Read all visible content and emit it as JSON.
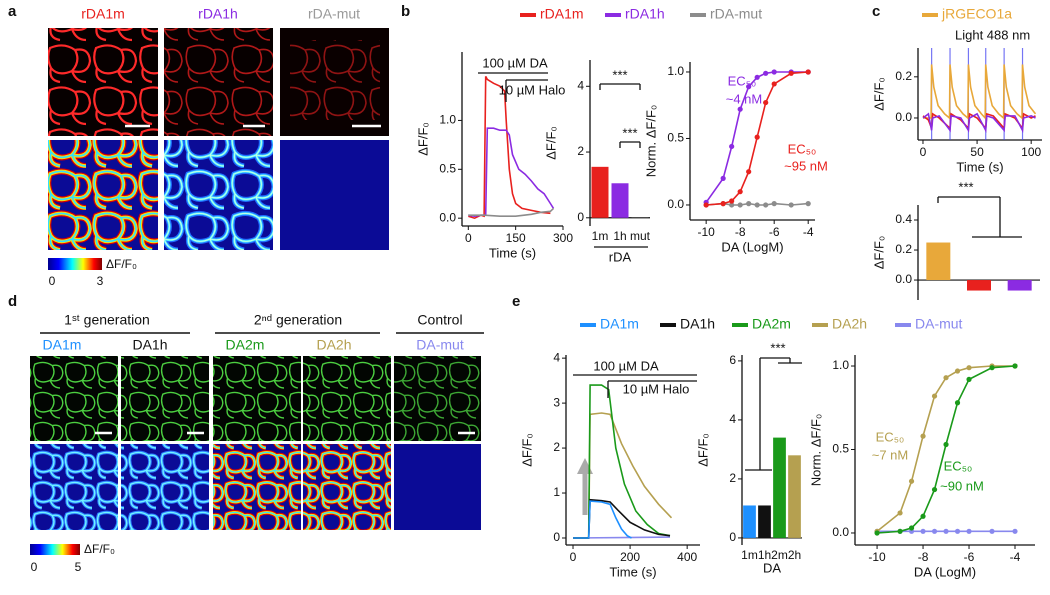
{
  "panel_labels": [
    "a",
    "b",
    "c",
    "d",
    "e"
  ],
  "panel_a": {
    "columns": [
      "rDA1m",
      "rDA1h",
      "rDA-mut"
    ],
    "colorbar": {
      "ticks": [
        0,
        3
      ],
      "label": "ΔF/F₀"
    }
  },
  "panel_d": {
    "groups": [
      "1ˢᵗ generation",
      "2ⁿᵈ generation",
      "Control"
    ],
    "columns": [
      "DA1m",
      "DA1h",
      "DA2m",
      "DA2h",
      "DA-mut"
    ],
    "colorbar": {
      "ticks": [
        0,
        5
      ],
      "label": "ΔF/F₀"
    }
  },
  "chart_data": [
    {
      "type": "line",
      "ylabel": "ΔF/F₀",
      "xlabel": "Time (s)",
      "xlim": [
        -20,
        300
      ],
      "ylim": [
        -0.08,
        1.7
      ],
      "xticks": [
        0,
        150,
        300
      ],
      "yticks": [
        {
          "value": 0,
          "label": "0.0"
        },
        {
          "value": 0.5,
          "label": "0.5"
        },
        {
          "value": 1,
          "label": "1.0"
        }
      ],
      "series": [
        {
          "name": "rDA1m",
          "color": "#e8211e",
          "x": [
            0,
            20,
            40,
            50,
            55,
            60,
            80,
            100,
            115,
            120,
            130,
            140,
            150,
            170,
            200,
            230,
            260
          ],
          "values": [
            0.02,
            0.0,
            0.03,
            0.02,
            1.45,
            1.42,
            1.38,
            1.35,
            1.3,
            1.0,
            0.5,
            0.25,
            0.15,
            0.1,
            0.08,
            0.06,
            0.05
          ]
        },
        {
          "name": "rDA1h",
          "color": "#8b2be2",
          "x": [
            0,
            20,
            40,
            55,
            60,
            80,
            100,
            120,
            130,
            140,
            160,
            180,
            200,
            220,
            240,
            260,
            270
          ],
          "values": [
            0.03,
            0.02,
            0.03,
            0.03,
            0.92,
            0.92,
            0.9,
            0.9,
            0.85,
            0.65,
            0.5,
            0.45,
            0.38,
            0.3,
            0.25,
            0.15,
            0.1
          ]
        },
        {
          "name": "rDA-mut",
          "color": "#8c8c8c",
          "x": [
            0,
            50,
            100,
            150,
            200,
            230,
            260,
            270
          ],
          "values": [
            0.03,
            0.03,
            0.02,
            0.02,
            0.04,
            0.06,
            0.07,
            0.1
          ]
        }
      ],
      "annotations": [
        {
          "text": "100 µM DA"
        },
        {
          "text": "10 µM Halo"
        }
      ]
    },
    {
      "type": "bar",
      "ylabel": "ΔF/F₀",
      "ylim": [
        -0.25,
        4.8
      ],
      "yticks": [
        0,
        2,
        4
      ],
      "categories": [
        "1m",
        "1h",
        "mut"
      ],
      "values": [
        1.55,
        1.05,
        -0.03
      ],
      "colors": [
        "#e8211e",
        "#8b2be2",
        "#8c8c8c"
      ],
      "annotations": [
        {
          "text": "***"
        },
        {
          "text": "***"
        },
        {
          "text": "rDA"
        }
      ]
    },
    {
      "type": "line",
      "markers": true,
      "ylabel": "Norm. ΔF/F₀",
      "xlabel": "DA (LogM)",
      "xlim": [
        -10.95,
        -3.6
      ],
      "ylim": [
        -0.113,
        1.075
      ],
      "xticks": [
        -10,
        -8,
        -6,
        -4
      ],
      "yticks": [
        {
          "value": 0,
          "label": "0.0"
        },
        {
          "value": 0.5,
          "label": "0.5"
        },
        {
          "value": 1,
          "label": "1.0"
        }
      ],
      "series": [
        {
          "color": "#8c8c8c",
          "x": [
            -10,
            -9,
            -8.5,
            -8,
            -7.5,
            -7,
            -6.5,
            -6,
            -5,
            -4
          ],
          "values": [
            0.0,
            0.01,
            0.0,
            0.0,
            0.01,
            0.0,
            0.0,
            0.01,
            0.0,
            0.01
          ]
        },
        {
          "color": "#8b2be2",
          "x": [
            -10,
            -9,
            -8.5,
            -8,
            -7.5,
            -7,
            -6.5,
            -6,
            -5,
            -4
          ],
          "values": [
            0.02,
            0.2,
            0.44,
            0.72,
            0.89,
            0.96,
            0.99,
            1.0,
            1.0,
            1.0
          ]
        },
        {
          "color": "#e8211e",
          "x": [
            -10,
            -9,
            -8.5,
            -8,
            -7.5,
            -7,
            -6.5,
            -6,
            -5,
            -4
          ],
          "values": [
            0.0,
            0.01,
            0.03,
            0.1,
            0.25,
            0.51,
            0.77,
            0.91,
            0.99,
            1.0
          ]
        }
      ],
      "annotations": [
        {
          "text": "EC₅₀",
          "color": "#8b2be2"
        },
        {
          "text": "~4 nM",
          "color": "#8b2be2"
        },
        {
          "text": "EC₅₀",
          "color": "#e8211e"
        },
        {
          "text": "~95 nM",
          "color": "#e8211e"
        }
      ]
    },
    {
      "type": "line",
      "ylabel": "ΔF/F₀",
      "xlabel": "Time (s)",
      "xlim": [
        -4.6,
        110
      ],
      "ylim": [
        -0.107,
        0.34
      ],
      "xticks": [
        0,
        50,
        100
      ],
      "yticks": [
        {
          "value": 0,
          "label": "0.0"
        },
        {
          "value": 0.2,
          "label": "0.2"
        }
      ],
      "light": {
        "label": "Light 488 nm",
        "color": "#3c3cf0",
        "x": [
          8,
          25,
          42,
          58,
          75,
          92
        ]
      },
      "series": [
        {
          "name": "jRGECO1a",
          "color": "#e8a83a",
          "x": [
            0,
            7.5,
            8,
            10,
            14,
            20,
            24.5,
            25,
            27,
            31,
            37,
            41.5,
            42,
            44,
            48,
            54,
            57.5,
            58,
            60,
            64,
            70,
            74.5,
            75,
            77,
            81,
            87,
            91.5,
            92,
            94,
            98,
            104
          ],
          "values": [
            0.0,
            0.0,
            0.26,
            0.15,
            0.06,
            0.02,
            0.0,
            0.26,
            0.15,
            0.06,
            0.02,
            0.0,
            0.26,
            0.15,
            0.06,
            0.02,
            0.0,
            0.26,
            0.15,
            0.06,
            0.02,
            0.0,
            0.26,
            0.15,
            0.06,
            0.02,
            0.0,
            0.26,
            0.15,
            0.06,
            0.02
          ]
        },
        {
          "color": "#e8211e",
          "x": [
            0,
            5,
            8,
            9,
            15,
            25,
            26,
            35,
            42,
            43,
            50,
            58,
            59,
            65,
            75,
            76,
            85,
            92,
            93,
            100,
            104
          ],
          "values": [
            0.01,
            -0.01,
            -0.05,
            0.02,
            0.0,
            -0.05,
            0.02,
            -0.01,
            -0.05,
            0.02,
            0.0,
            -0.05,
            0.02,
            0.01,
            -0.05,
            0.02,
            0.0,
            -0.05,
            0.02,
            0.0,
            0.01
          ]
        },
        {
          "color": "#8b2be2",
          "x": [
            0,
            5,
            8,
            9,
            15,
            25,
            26,
            35,
            42,
            43,
            50,
            58,
            59,
            65,
            75,
            76,
            85,
            92,
            93,
            100,
            104
          ],
          "values": [
            0.0,
            0.02,
            -0.06,
            0.0,
            0.01,
            -0.06,
            0.01,
            0.0,
            -0.06,
            0.0,
            0.02,
            -0.06,
            0.01,
            0.0,
            -0.06,
            0.01,
            0.01,
            -0.06,
            0.0,
            0.01,
            0.0
          ]
        }
      ],
      "annotations": []
    },
    {
      "type": "bar",
      "ylabel": "ΔF/F₀",
      "ylim": [
        -0.133,
        0.5
      ],
      "yticks": [
        {
          "value": 0,
          "label": "0.0"
        },
        {
          "value": 0.2,
          "label": "0.2"
        },
        {
          "value": 0.4,
          "label": "0.4"
        }
      ],
      "categories": [
        null,
        null,
        null
      ],
      "values": [
        0.25,
        -0.07,
        -0.07
      ],
      "colors": [
        "#e8a83a",
        "#e8211e",
        "#8b2be2"
      ],
      "annotations": [
        {
          "text": "***"
        }
      ]
    },
    {
      "type": "line",
      "ylabel": "ΔF/F₀",
      "xlabel": "Time (s)",
      "xlim": [
        -24.6,
        445
      ],
      "ylim": [
        -0.156,
        4.07
      ],
      "xticks": [
        0,
        200,
        400
      ],
      "yticks": [
        0,
        1,
        2,
        3,
        4
      ],
      "series": [
        {
          "name": "DA-mut",
          "color": "#8888ee",
          "x": [
            0,
            340
          ],
          "values": [
            0.0,
            0.02
          ]
        },
        {
          "name": "DA2h",
          "color": "#b5a050",
          "x": [
            0,
            55,
            60,
            100,
            130,
            170,
            210,
            250,
            300,
            345
          ],
          "values": [
            0,
            0,
            2.75,
            2.78,
            2.75,
            2.1,
            1.6,
            1.15,
            0.75,
            0.45
          ]
        },
        {
          "name": "DA2m",
          "color": "#1a9a1a",
          "x": [
            0,
            55,
            60,
            100,
            125,
            150,
            180,
            220,
            260,
            300,
            340
          ],
          "values": [
            0,
            0,
            3.4,
            3.4,
            3.3,
            2.0,
            1.2,
            0.6,
            0.3,
            0.1,
            0.05
          ]
        },
        {
          "name": "DA1h",
          "color": "#111111",
          "x": [
            0,
            55,
            60,
            100,
            130,
            160,
            200,
            250,
            300,
            340
          ],
          "values": [
            0,
            0,
            0.85,
            0.83,
            0.8,
            0.6,
            0.35,
            0.18,
            0.08,
            0.05
          ]
        },
        {
          "name": "DA1m",
          "color": "#1e90ff",
          "x": [
            0,
            55,
            60,
            100,
            130,
            150,
            170,
            190,
            205
          ],
          "values": [
            0,
            0,
            0.82,
            0.8,
            0.75,
            0.45,
            0.2,
            0.05,
            0.0
          ]
        }
      ],
      "annotations": [
        {
          "text": "100 µM DA"
        },
        {
          "text": "10 µM Halo"
        }
      ]
    },
    {
      "type": "bar",
      "ylabel": "ΔF/F₀",
      "ylim": [
        -0.24,
        6.2
      ],
      "yticks": [
        0,
        2,
        4,
        6
      ],
      "categories": [
        "1m",
        "1h",
        "2m",
        "2h"
      ],
      "values": [
        1.1,
        1.1,
        3.4,
        2.8
      ],
      "colors": [
        "#1e90ff",
        "#111111",
        "#1a9a1a",
        "#b5a050"
      ],
      "annotations": [
        {
          "text": "***"
        },
        {
          "text": "DA"
        }
      ]
    },
    {
      "type": "line",
      "markers": true,
      "ylabel": "Norm. ΔF/F₀",
      "xlabel": "DA (LogM)",
      "xlim": [
        -10.96,
        -3.13
      ],
      "ylim": [
        -0.072,
        1.066
      ],
      "xticks": [
        -10,
        -8,
        -6,
        -4
      ],
      "yticks": [
        {
          "value": 0,
          "label": "0.0"
        },
        {
          "value": 0.5,
          "label": "0.5"
        },
        {
          "value": 1,
          "label": "1.0"
        }
      ],
      "series": [
        {
          "color": "#8888ee",
          "x": [
            -10,
            -9,
            -8.5,
            -8,
            -7.5,
            -7,
            -6.5,
            -6,
            -5,
            -4
          ],
          "values": [
            0.01,
            0.01,
            0.01,
            0.01,
            0.01,
            0.01,
            0.01,
            0.01,
            0.01,
            0.01
          ]
        },
        {
          "color": "#b5a050",
          "x": [
            -10,
            -9,
            -8.5,
            -8,
            -7.5,
            -7,
            -6.5,
            -6,
            -5,
            -4
          ],
          "values": [
            0.01,
            0.12,
            0.31,
            0.58,
            0.82,
            0.93,
            0.97,
            0.99,
            1.0,
            1.0
          ]
        },
        {
          "color": "#1a9a1a",
          "x": [
            -10,
            -9,
            -8.5,
            -8,
            -7.5,
            -7,
            -6.5,
            -6,
            -5,
            -4
          ],
          "values": [
            0.0,
            0.01,
            0.03,
            0.1,
            0.26,
            0.53,
            0.78,
            0.92,
            0.99,
            1.0
          ]
        }
      ],
      "annotations": [
        {
          "text": "EC₅₀",
          "color": "#b5a050"
        },
        {
          "text": "~7 nM",
          "color": "#b5a050"
        },
        {
          "text": "EC₅₀",
          "color": "#1a9a1a"
        },
        {
          "text": "~90 nM",
          "color": "#1a9a1a"
        }
      ]
    }
  ]
}
